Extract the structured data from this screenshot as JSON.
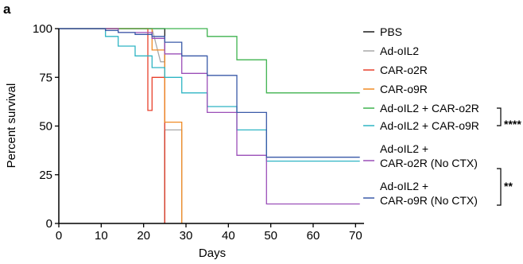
{
  "chart_data": {
    "type": "line",
    "step": true,
    "panel_label": "a",
    "xlabel": "Days",
    "ylabel": "Percent survival",
    "xlim": [
      0,
      72
    ],
    "ylim": [
      0,
      100
    ],
    "x_ticks": [
      "0",
      "10",
      "20",
      "30",
      "40",
      "50",
      "60",
      "70"
    ],
    "y_ticks": [
      "0",
      "25",
      "50",
      "75",
      "100"
    ],
    "legend_position": "right",
    "series": [
      {
        "name": "PBS",
        "color": "#1a1a1a",
        "points": [
          [
            0,
            100
          ],
          [
            22,
            100
          ],
          [
            22,
            100
          ],
          [
            25,
            100
          ],
          [
            25,
            0
          ]
        ]
      },
      {
        "name": "Ad-oIL2",
        "color": "#a8a8a8",
        "points": [
          [
            0,
            100
          ],
          [
            22,
            100
          ],
          [
            24,
            83
          ],
          [
            25,
            83
          ],
          [
            25,
            48
          ],
          [
            29,
            48
          ],
          [
            29,
            0
          ]
        ]
      },
      {
        "name": "CAR-o2R",
        "color": "#e8412c",
        "points": [
          [
            0,
            100
          ],
          [
            21,
            100
          ],
          [
            21,
            58
          ],
          [
            22,
            58
          ],
          [
            22,
            75
          ],
          [
            25,
            75
          ],
          [
            25,
            0
          ]
        ]
      },
      {
        "name": "CAR-o9R",
        "color": "#f08a24",
        "points": [
          [
            0,
            100
          ],
          [
            22,
            100
          ],
          [
            22,
            89
          ],
          [
            25,
            89
          ],
          [
            25,
            52
          ],
          [
            29,
            52
          ],
          [
            29,
            0
          ]
        ]
      },
      {
        "name": "Ad-oIL2 + CAR-o2R",
        "color": "#3fb34f",
        "points": [
          [
            0,
            100
          ],
          [
            35,
            100
          ],
          [
            35,
            96
          ],
          [
            42,
            96
          ],
          [
            42,
            84
          ],
          [
            49,
            84
          ],
          [
            49,
            67
          ],
          [
            71,
            67
          ]
        ]
      },
      {
        "name": "Ad-oIL2 + CAR-o9R",
        "color": "#2fb5c4",
        "points": [
          [
            0,
            100
          ],
          [
            11,
            100
          ],
          [
            11,
            96
          ],
          [
            14,
            96
          ],
          [
            14,
            91
          ],
          [
            18,
            91
          ],
          [
            18,
            86
          ],
          [
            22,
            86
          ],
          [
            22,
            80
          ],
          [
            25,
            80
          ],
          [
            25,
            75
          ],
          [
            29,
            75
          ],
          [
            29,
            67
          ],
          [
            35,
            67
          ],
          [
            35,
            60
          ],
          [
            42,
            60
          ],
          [
            42,
            48
          ],
          [
            49,
            48
          ],
          [
            49,
            32
          ],
          [
            71,
            32
          ]
        ]
      },
      {
        "name": "Ad-oIL2 + CAR-o2R (No CTX)",
        "color": "#9b4fb8",
        "points": [
          [
            0,
            100
          ],
          [
            14,
            100
          ],
          [
            14,
            98
          ],
          [
            22,
            98
          ],
          [
            22,
            95
          ],
          [
            25,
            95
          ],
          [
            25,
            87
          ],
          [
            29,
            87
          ],
          [
            29,
            77
          ],
          [
            35,
            77
          ],
          [
            35,
            57
          ],
          [
            42,
            57
          ],
          [
            42,
            35
          ],
          [
            49,
            35
          ],
          [
            49,
            10
          ],
          [
            71,
            10
          ]
        ]
      },
      {
        "name": "Ad-oIL2 + CAR-o9R (No CTX)",
        "color": "#3a5aa8",
        "points": [
          [
            0,
            100
          ],
          [
            11,
            100
          ],
          [
            11,
            99
          ],
          [
            14,
            99
          ],
          [
            14,
            98
          ],
          [
            18,
            98
          ],
          [
            18,
            97
          ],
          [
            22,
            97
          ],
          [
            22,
            96
          ],
          [
            25,
            96
          ],
          [
            25,
            93
          ],
          [
            29,
            93
          ],
          [
            29,
            86
          ],
          [
            35,
            86
          ],
          [
            35,
            76
          ],
          [
            42,
            76
          ],
          [
            42,
            57
          ],
          [
            49,
            57
          ],
          [
            49,
            34
          ],
          [
            71,
            34
          ]
        ]
      }
    ],
    "legend_labels": [
      [
        "PBS"
      ],
      [
        "Ad-oIL2"
      ],
      [
        "CAR-o2R"
      ],
      [
        "CAR-o9R"
      ],
      [
        "Ad-oIL2 + CAR-o2R"
      ],
      [
        "Ad-oIL2 + CAR-o9R"
      ],
      [
        "Ad-oIL2 +",
        "CAR-o2R (No CTX)"
      ],
      [
        "Ad-oIL2 +",
        "CAR-o9R (No CTX)"
      ]
    ],
    "significance": [
      {
        "label": "****",
        "between": [
          "Ad-oIL2 + CAR-o2R",
          "Ad-oIL2 + CAR-o9R"
        ]
      },
      {
        "label": "**",
        "between": [
          "Ad-oIL2 + CAR-o2R (No CTX)",
          "Ad-oIL2 + CAR-o9R (No CTX)"
        ]
      }
    ]
  }
}
